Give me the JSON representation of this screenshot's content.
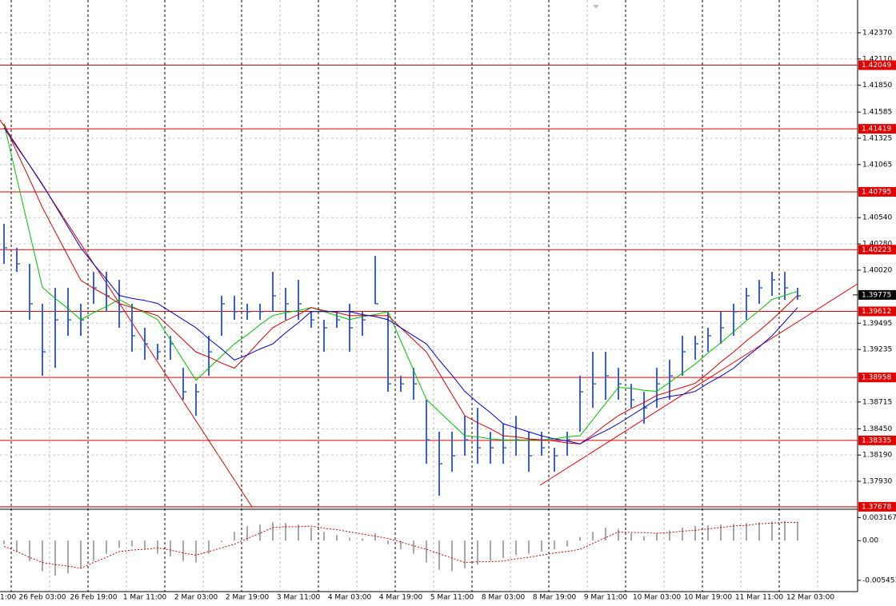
{
  "chart_data": {
    "type": "ohlc",
    "time_labels": [
      "1:00",
      "26 Feb 03:00",
      "26 Feb 19:00",
      "1 Mar 11:00",
      "2 Mar 03:00",
      "2 Mar 19:00",
      "3 Mar 11:00",
      "4 Mar 03:00",
      "4 Mar 19:00",
      "5 Mar 11:00",
      "8 Mar 03:00",
      "8 Mar 19:00",
      "9 Mar 11:00",
      "10 Mar 03:00",
      "10 Mar 19:00",
      "11 Mar 11:00",
      "12 Mar 03:00"
    ],
    "ylim": [
      1.37677,
      1.42694
    ],
    "yticks": [
      {
        "value": 1.4237,
        "label": "1.42370"
      },
      {
        "value": 1.4211,
        "label": "1.42110"
      },
      {
        "value": 1.4185,
        "label": "1.41850"
      },
      1.41585,
      1.41325,
      1.41065,
      {
        "value": 1.4054,
        "label": "1.40540"
      },
      {
        "value": 1.4028,
        "label": "1.40280"
      },
      {
        "value": 1.4002,
        "label": "1.40020"
      },
      1.39495,
      1.39235,
      1.38715,
      {
        "value": 1.3845,
        "label": "1.38450"
      },
      {
        "value": 1.3819,
        "label": "1.38190"
      },
      {
        "value": 1.3793,
        "label": "1.37930"
      }
    ],
    "bars": {
      "color": "#3a62c4",
      "high": [
        1.40478,
        1.40241,
        1.40082,
        1.39687,
        1.39845,
        1.39845,
        1.39687,
        1.40003,
        1.40003,
        1.39924,
        1.39687,
        1.39449,
        1.39291,
        1.3937,
        1.39053,
        1.38895,
        1.3937,
        1.39766,
        1.39766,
        1.39687,
        1.39687,
        1.40003,
        1.39845,
        1.39924,
        1.39608,
        1.39528,
        1.39608,
        1.39687,
        1.39608,
        1.40162,
        1.39608,
        1.38974,
        1.39053,
        1.38737,
        1.3842,
        1.3842,
        1.38578,
        1.38657,
        1.3842,
        1.38499,
        1.38578,
        1.3842,
        1.3842,
        1.38262,
        1.3842,
        1.38974,
        1.39212,
        1.39212,
        1.39053,
        1.38895,
        1.38816,
        1.39053,
        1.39133,
        1.3937,
        1.3937,
        1.39449,
        1.39608,
        1.39687,
        1.39845,
        1.39924,
        1.40003,
        1.40003,
        1.39845
      ],
      "low": [
        1.40082,
        1.40003,
        1.39528,
        1.38974,
        1.39053,
        1.3937,
        1.3937,
        1.39687,
        1.39608,
        1.39449,
        1.39212,
        1.39133,
        1.39133,
        1.39133,
        1.38737,
        1.38578,
        1.38974,
        1.3937,
        1.39528,
        1.39528,
        1.39528,
        1.39608,
        1.39528,
        1.39528,
        1.39449,
        1.39212,
        1.39449,
        1.39212,
        1.3937,
        1.39687,
        1.38816,
        1.38816,
        1.38737,
        1.38103,
        1.37787,
        1.38024,
        1.38183,
        1.38103,
        1.38103,
        1.38103,
        1.38183,
        1.38024,
        1.38183,
        1.38024,
        1.38183,
        1.3842,
        1.38657,
        1.38737,
        1.38737,
        1.38657,
        1.38499,
        1.38657,
        1.38737,
        1.38974,
        1.39133,
        1.39212,
        1.39291,
        1.3937,
        1.39528,
        1.39687,
        1.39766,
        1.39726,
        1.39726
      ],
      "close": [
        1.40241,
        1.40082,
        1.39687,
        1.39212,
        1.39528,
        1.39528,
        1.39528,
        1.39845,
        1.39766,
        1.39608,
        1.3937,
        1.39291,
        1.39212,
        1.39291,
        1.38816,
        1.38816,
        1.39212,
        1.39687,
        1.39608,
        1.39608,
        1.39608,
        1.39766,
        1.39687,
        1.39687,
        1.39528,
        1.39449,
        1.39528,
        1.39449,
        1.39528,
        1.39687,
        1.38895,
        1.38895,
        1.38895,
        1.38341,
        1.38103,
        1.38183,
        1.38341,
        1.38262,
        1.38262,
        1.38262,
        1.38341,
        1.38183,
        1.38262,
        1.38183,
        1.38341,
        1.38816,
        1.38895,
        1.38974,
        1.38895,
        1.38737,
        1.38657,
        1.38895,
        1.38974,
        1.39212,
        1.39291,
        1.3937,
        1.39449,
        1.39608,
        1.39766,
        1.39845,
        1.39924,
        1.39845,
        1.39766
      ]
    },
    "moving_averages": [
      {
        "color": "#00c000",
        "values": [
          1.4147,
          1.4093,
          1.4039,
          1.3985,
          1.3974,
          1.3964,
          1.3953,
          1.396,
          1.3966,
          1.3973,
          1.3966,
          1.396,
          1.3953,
          1.3933,
          1.3913,
          1.3893,
          1.3905,
          1.3917,
          1.3929,
          1.3938,
          1.3948,
          1.3957,
          1.396,
          1.3962,
          1.3965,
          1.3961,
          1.3957,
          1.3953,
          1.3956,
          1.3958,
          1.3961,
          1.3932,
          1.3903,
          1.3874,
          1.3862,
          1.385,
          1.3838,
          1.3837,
          1.3835,
          1.3834,
          1.3834,
          1.3834,
          1.3834,
          1.3835,
          1.3837,
          1.3838,
          1.3854,
          1.387,
          1.3886,
          1.3885,
          1.3883,
          1.3882,
          1.3891,
          1.39,
          1.3909,
          1.392,
          1.393,
          1.3941,
          1.3952,
          1.3962,
          1.3973,
          1.3977,
          1.3981
        ]
      },
      {
        "color": "#d00000",
        "values": [
          1.4147,
          1.4119,
          1.4092,
          1.4064,
          1.404,
          1.4016,
          1.3992,
          1.3984,
          1.3977,
          1.3969,
          1.3965,
          1.3961,
          1.3957,
          1.3945,
          1.3933,
          1.3921,
          1.3916,
          1.391,
          1.3905,
          1.3918,
          1.3932,
          1.3945,
          1.3952,
          1.3958,
          1.3965,
          1.3962,
          1.396,
          1.3957,
          1.3957,
          1.3957,
          1.3957,
          1.3945,
          1.3933,
          1.3921,
          1.39,
          1.3879,
          1.3858,
          1.3851,
          1.3845,
          1.3838,
          1.3837,
          1.3835,
          1.3834,
          1.3833,
          1.3831,
          1.383,
          1.3839,
          1.3849,
          1.3858,
          1.3865,
          1.3871,
          1.3878,
          1.3882,
          1.3886,
          1.389,
          1.39,
          1.3911,
          1.3921,
          1.3932,
          1.3942,
          1.3953,
          1.3965,
          1.3977
        ]
      },
      {
        "color": "#0000c8",
        "values": [
          1.4143,
          1.4124,
          1.4106,
          1.4087,
          1.4066,
          1.4045,
          1.4024,
          1.4008,
          1.3993,
          1.3977,
          1.3974,
          1.3972,
          1.3969,
          1.3961,
          1.3953,
          1.3945,
          1.3934,
          1.3924,
          1.3913,
          1.3918,
          1.3924,
          1.3929,
          1.394,
          1.395,
          1.3961,
          1.3961,
          1.3961,
          1.3961,
          1.3958,
          1.3956,
          1.3953,
          1.3945,
          1.3937,
          1.3929,
          1.3913,
          1.3898,
          1.3882,
          1.3871,
          1.3861,
          1.385,
          1.3846,
          1.3842,
          1.3838,
          1.3835,
          1.3833,
          1.383,
          1.3837,
          1.3843,
          1.385,
          1.3858,
          1.3866,
          1.3874,
          1.3877,
          1.3879,
          1.3882,
          1.389,
          1.3897,
          1.3905,
          1.3916,
          1.3926,
          1.3937,
          1.3951,
          1.3965
        ]
      }
    ],
    "levels": {
      "color": "#e00000",
      "values": [
        1.42049,
        1.41419,
        1.40795,
        1.40223,
        1.39612,
        1.38958,
        1.38335,
        1.37678
      ]
    },
    "current_price": 1.39775,
    "oscillator": {
      "ylim": [
        -0.007,
        0.0043
      ],
      "yticks": [
        0.003167,
        {
          "value": 0,
          "label": "0.00"
        },
        -0.005453
      ],
      "histogram": {
        "color": "#a8a8a8",
        "values": [
          -0.0005,
          -0.0015,
          -0.0028,
          -0.0042,
          -0.0048,
          -0.0045,
          -0.0038,
          -0.0028,
          -0.0018,
          -0.001,
          -0.0008,
          -0.0012,
          -0.0018,
          -0.0022,
          -0.0028,
          -0.003,
          -0.0018,
          -0.0002,
          0.0012,
          0.002,
          0.0022,
          0.0025,
          0.0024,
          0.0022,
          0.0018,
          0.0012,
          0.0008,
          0.0004,
          0.0003,
          0.001,
          -0.0005,
          -0.0012,
          -0.0018,
          -0.003,
          -0.004,
          -0.0042,
          -0.0038,
          -0.0033,
          -0.0028,
          -0.0024,
          -0.002,
          -0.0018,
          -0.0015,
          -0.0012,
          -0.0008,
          0.0005,
          0.0012,
          0.0018,
          0.0016,
          0.001,
          0.0006,
          0.001,
          0.0014,
          0.0018,
          0.002,
          0.0021,
          0.0022,
          0.0023,
          0.0024,
          0.0025,
          0.0026,
          0.0027,
          0.0026
        ]
      },
      "signal": {
        "color": "#d00000",
        "values": [
          -0.0008,
          -0.0015,
          -0.0023,
          -0.003,
          -0.0033,
          -0.0035,
          -0.0038,
          -0.003,
          -0.0023,
          -0.0015,
          -0.0013,
          -0.0012,
          -0.001,
          -0.0013,
          -0.0017,
          -0.002,
          -0.0015,
          -0.001,
          -0.0005,
          0.0003,
          0.001,
          0.0018,
          0.0019,
          0.0019,
          0.002,
          0.0017,
          0.0015,
          0.0012,
          0.0009,
          0.0006,
          0.0003,
          -0.0002,
          -0.0007,
          -0.0012,
          -0.0018,
          -0.0024,
          -0.003,
          -0.0029,
          -0.0029,
          -0.0028,
          -0.0025,
          -0.0023,
          -0.002,
          -0.0017,
          -0.0015,
          -0.0012,
          -0.0004,
          0.0004,
          0.0012,
          0.0011,
          0.0011,
          0.001,
          0.0011,
          0.0013,
          0.0014,
          0.0016,
          0.0018,
          0.002,
          0.0021,
          0.0023,
          0.0024,
          0.0025,
          0.0025
        ]
      }
    }
  }
}
